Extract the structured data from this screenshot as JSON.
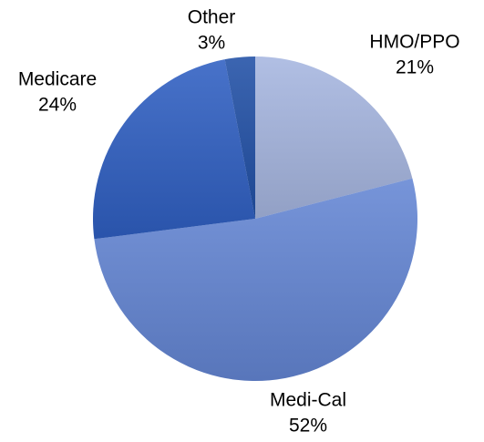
{
  "chart_data": {
    "type": "pie",
    "categories": [
      "HMO/PPO",
      "Medi-Cal",
      "Medicare",
      "Other"
    ],
    "values": [
      21,
      52,
      24,
      3
    ],
    "value_labels": [
      "21%",
      "52%",
      "24%",
      "3%"
    ],
    "colors": [
      "#a6b6e0",
      "#6486d4",
      "#2f5fc2",
      "#2150a6"
    ]
  }
}
